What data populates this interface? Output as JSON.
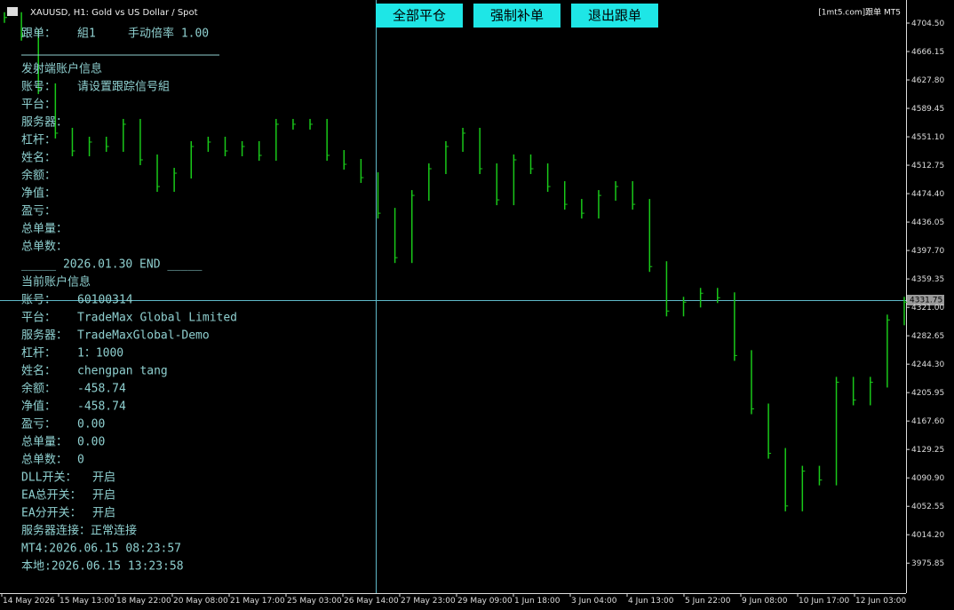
{
  "chart_data": {
    "type": "bar",
    "title": "XAUUSD, H1:  Gold vs US Dollar / Spot",
    "brand": "[1mt5.com]跟单 MT5",
    "current_price": "4331.75",
    "color": "#19c819",
    "ylim": [
      3935.4,
      4735.65
    ],
    "yticks": [
      {
        "value": 4704.5,
        "label": "4704.50"
      },
      4666.15,
      {
        "value": 4627.8,
        "label": "4627.80"
      },
      4589.45,
      {
        "value": 4551.1,
        "label": "4551.10"
      },
      4512.75,
      {
        "value": 4474.4,
        "label": "4474.40"
      },
      4436.05,
      {
        "value": 4397.7,
        "label": "4397.70"
      },
      4359.35,
      {
        "value": 4321,
        "label": "4321.00"
      },
      4282.65,
      {
        "value": 4244.3,
        "label": "4244.30"
      },
      4205.95,
      {
        "value": 4167.6,
        "label": "4167.60"
      },
      4129.25,
      {
        "value": 4090.9,
        "label": "4090.90"
      },
      4052.55,
      {
        "value": 4014.2,
        "label": "4014.20"
      },
      3975.85
    ],
    "xlabels": [
      "14 May 2026",
      "15 May 13:00",
      "18 May 22:00",
      "20 May 08:00",
      "21 May 17:00",
      "25 May 03:00",
      "26 May 14:00",
      "27 May 23:00",
      "29 May 09:00",
      "1 Jun 18:00",
      "3 Jun 04:00",
      "4 Jun 13:00",
      "5 Jun 22:00",
      "9 Jun 08:00",
      "10 Jun 17:00",
      "12 Jun 03:00"
    ],
    "values": [
      4712,
      4688,
      4616,
      4556,
      4532,
      4544,
      4538,
      4568,
      4520,
      4484,
      4502,
      4538,
      4544,
      4532,
      4538,
      4526,
      4568,
      4568,
      4568,
      4526,
      4514,
      4496,
      4448,
      4388,
      4472,
      4508,
      4538,
      4556,
      4508,
      4466,
      4520,
      4508,
      4484,
      4460,
      4448,
      4472,
      4484,
      4460,
      4376,
      4316,
      4328,
      4340,
      4334,
      4256,
      4184,
      4124,
      4053,
      4100,
      4088,
      4220,
      4196,
      4220,
      4304,
      4328
    ]
  },
  "buttons": [
    "全部平仓",
    "强制补单",
    "退出跟单"
  ],
  "panel": {
    "follow": {
      "label": "跟单：",
      "group": "組1",
      "ratio": "手动倍率 1.00"
    },
    "sender_title": "发射端账户信息",
    "sender": [
      [
        "账号：",
        "请设置跟踪信号組"
      ],
      [
        "平台："
      ],
      [
        "服务器："
      ],
      [
        "杠杆："
      ],
      [
        "姓名："
      ],
      [
        "余额："
      ],
      [
        "净值："
      ],
      [
        "盈亏："
      ],
      [
        "总单量："
      ],
      [
        "总单数："
      ]
    ],
    "end_line": "_____  2026.01.30 END  _____",
    "current_title": "当前账户信息",
    "current": [
      [
        "账号：",
        "60100314"
      ],
      [
        "平台：",
        "TradeMax Global Limited"
      ],
      [
        "服务器：",
        "TradeMaxGlobal-Demo"
      ],
      [
        "杠杆：",
        "1：1000"
      ],
      [
        "姓名：",
        "chengpan tang"
      ],
      [
        "余额：",
        "-458.74"
      ],
      [
        "净值：",
        "-458.74"
      ],
      [
        "盈亏：",
        "0.00"
      ],
      [
        "总单量：",
        "0.00"
      ],
      [
        "总单数：",
        "0"
      ],
      [
        "DLL开关：",
        "开启"
      ],
      [
        "EA总开关：",
        "开启"
      ],
      [
        "EA分开关：",
        "开启"
      ]
    ],
    "footer": [
      "服务器连接：正常连接",
      "MT4:2026.06.15 08:23:57",
      "本地:2026.06.15 13:23:58"
    ]
  }
}
